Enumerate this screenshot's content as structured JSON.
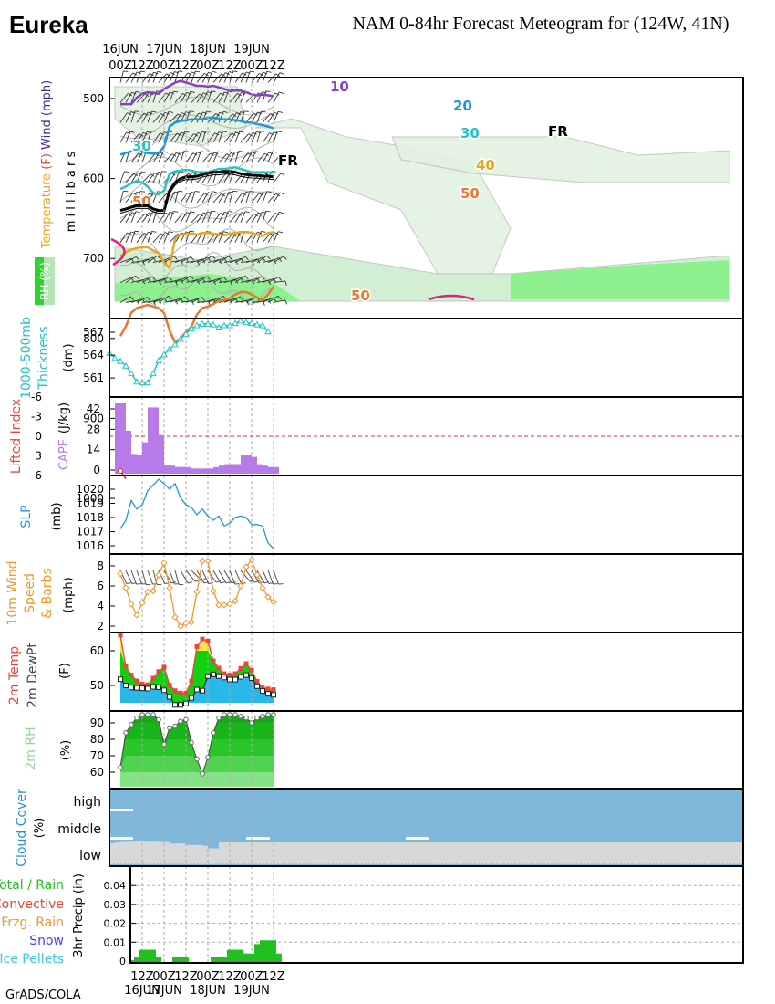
{
  "header": {
    "station": "Eureka",
    "title": "NAM 0-84hr Forecast Meteogram for (124W, 41N)"
  },
  "footer": {
    "credit": "GrADS/COLA"
  },
  "time_axis": {
    "top_labels": [
      {
        "h": 0,
        "l1": "16JUN",
        "l2": "00Z"
      },
      {
        "h": 12,
        "l1": "",
        "l2": "12Z"
      },
      {
        "h": 24,
        "l1": "17JUN",
        "l2": "00Z"
      },
      {
        "h": 36,
        "l1": "",
        "l2": "12Z"
      },
      {
        "h": 48,
        "l1": "18JUN",
        "l2": "00Z"
      },
      {
        "h": 60,
        "l1": "",
        "l2": "12Z"
      },
      {
        "h": 72,
        "l1": "19JUN",
        "l2": "00Z"
      },
      {
        "h": 84,
        "l1": "",
        "l2": "12Z"
      }
    ],
    "bottom_labels": [
      {
        "h": 12,
        "l1": "12Z",
        "l2": "16JUN"
      },
      {
        "h": 24,
        "l1": "00Z",
        "l2": "17JUN"
      },
      {
        "h": 36,
        "l1": "12Z",
        "l2": ""
      },
      {
        "h": 48,
        "l1": "00Z",
        "l2": "18JUN"
      },
      {
        "h": 60,
        "l1": "12Z",
        "l2": ""
      },
      {
        "h": 72,
        "l1": "00Z",
        "l2": "19JUN"
      },
      {
        "h": 84,
        "l1": "12Z",
        "l2": ""
      }
    ]
  },
  "panel_labels": {
    "upper": {
      "temperature": "Temperature",
      "f": "(F)",
      "wind": "Wind (mph)",
      "millibars": "m i l l i b a r s",
      "rh": "RH (%)"
    },
    "thickness": {
      "line1": "1000-500mb",
      "line2": "Thickness",
      "unit": "(dm)"
    },
    "instability": {
      "li": "Lifted Index",
      "cape": "CAPE",
      "unit": "(J/kg)"
    },
    "slp": {
      "name": "SLP",
      "unit": "(mb)"
    },
    "wind10": {
      "l1": "10m Wind",
      "l2": "Speed",
      "l3": "& Barbs",
      "unit": "(mph)"
    },
    "temp2m": {
      "l1": "2m Temp",
      "l2": "2m DewPt",
      "unit": "(F)"
    },
    "rh2m": {
      "name": "2m RH",
      "unit": "(%)"
    },
    "cloud": {
      "name": "Cloud Cover",
      "unit": "(%)",
      "high": "high",
      "middle": "middle",
      "low": "low"
    },
    "precip": {
      "l1": "Total / Rain",
      "l2": "Convective",
      "l3": "Frzg. Rain",
      "l4": "Snow",
      "l5": "Ice Pellets",
      "axis": "3hr Precip (in)"
    }
  },
  "colors": {
    "temp_red": "#e8453c",
    "wind_purple": "#8c3fc1",
    "thickness_cyan": "#23c4c4",
    "cape": "#b77ae8",
    "slp": "#1e96dc",
    "wind10": "#f0962d",
    "temp_fill": "#10d010",
    "dew_fill": "#29b8e8",
    "rh_green": "#1cc41c",
    "cloud_blue": "#80b8dc",
    "cloud_gray": "#d8d8d8",
    "precip": "#20c020",
    "rh_label": "#9ad29a"
  },
  "chart_data": [
    {
      "type": "contour",
      "name": "upper_air",
      "y_axis": {
        "label": "millibars",
        "ticks": [
          500,
          600,
          700,
          800,
          900,
          1000
        ]
      },
      "temperature_contours_F": [
        {
          "value": 10,
          "color": "#8c3fc1",
          "levels_mb": [
            507,
            507,
            507,
            499,
            494,
            492,
            493,
            494,
            488,
            484,
            480,
            478,
            480,
            482,
            484,
            484,
            485,
            484,
            486,
            488,
            490,
            490,
            490,
            492,
            495,
            496,
            495,
            496,
            497
          ]
        },
        {
          "value": 20,
          "color": "#1e96dc",
          "levels_mb": [
            570,
            568,
            566,
            566,
            566,
            568,
            569,
            568,
            560,
            535,
            530,
            528,
            527,
            526,
            526,
            526,
            524,
            524,
            525,
            526,
            526,
            527,
            528,
            530,
            530,
            532,
            533,
            535,
            537
          ]
        },
        {
          "value": 30,
          "color": "#23c4c4",
          "levels_mb": [
            613,
            610,
            606,
            603,
            605,
            610,
            618,
            620,
            615,
            594,
            591,
            590,
            589,
            590,
            592,
            592,
            592,
            590,
            588,
            588,
            587,
            586,
            588,
            590,
            592,
            592,
            592,
            592,
            593
          ]
        },
        {
          "value": 40,
          "color": "#e8a623",
          "levels_mb": [
            697,
            692,
            689,
            687,
            686,
            686,
            690,
            693,
            705,
            712,
            675,
            670,
            670,
            669,
            670,
            668,
            668,
            669,
            670,
            671,
            669,
            668,
            667,
            667,
            668,
            670,
            672,
            668,
            667
          ]
        },
        {
          "value": 50,
          "color": "#e8782d",
          "levels_mb": [
            797,
            785,
            768,
            762,
            760,
            758,
            760,
            762,
            768,
            790,
            805,
            800,
            792,
            785,
            770,
            762,
            760,
            757,
            753,
            752,
            750,
            745,
            742,
            742,
            745,
            749,
            752,
            745,
            735
          ]
        }
      ],
      "freezing_level_mb": [
        640,
        638,
        636,
        634,
        634,
        634,
        638,
        640,
        640,
        615,
        605,
        600,
        598,
        598,
        597,
        595,
        593,
        592,
        592,
        591,
        591,
        592,
        594,
        595,
        596,
        596,
        597,
        597,
        598
      ],
      "contour_labels": [
        "10",
        "20",
        "30",
        "40",
        "50",
        "FR"
      ]
    },
    {
      "type": "line",
      "name": "thickness",
      "ylabel": "1000-500mb Thickness (dm)",
      "y_ticks": [
        561,
        564,
        567
      ],
      "ylim": [
        558.5,
        568.8
      ],
      "hours": [
        0,
        3,
        6,
        9,
        12,
        15,
        18,
        21,
        24,
        27,
        30,
        33,
        36,
        39,
        42,
        45,
        48,
        51,
        54,
        57,
        60,
        63,
        66,
        69,
        72,
        75,
        78,
        81,
        84,
        87
      ],
      "values": [
        564.3,
        563.6,
        563.2,
        562.6,
        561.6,
        560.5,
        560.4,
        560.4,
        561.6,
        563.3,
        564.1,
        564.8,
        565.4,
        566.1,
        566.8,
        567.5,
        567.9,
        568.1,
        568.1,
        568.0,
        567.6,
        567.9,
        567.9,
        568.2,
        568.5,
        568.3,
        568.2,
        568.0,
        567.9,
        567.1
      ],
      "marker": "triangle"
    },
    {
      "type": "bar",
      "name": "instability",
      "cape_axis": {
        "label": "CAPE (J/kg)",
        "ticks": [
          0,
          14,
          28,
          42
        ]
      },
      "li_axis": {
        "label": "Lifted Index",
        "ticks": [
          -6,
          -3,
          0,
          3,
          6
        ]
      },
      "hours": [
        0,
        3,
        6,
        9,
        12,
        15,
        18,
        21,
        24,
        27,
        30,
        33,
        36,
        39,
        42,
        45,
        48,
        51,
        54,
        57,
        60,
        63,
        66,
        69,
        72,
        75,
        78,
        81,
        84
      ],
      "cape": [
        46,
        27,
        11,
        8,
        10,
        19,
        43,
        24,
        3,
        3,
        2,
        2,
        2,
        1,
        1,
        1,
        1,
        1,
        2,
        3,
        4,
        4,
        4,
        10,
        9,
        4,
        3,
        2,
        2
      ],
      "lifted_index": [
        5.3,
        6.5
      ]
    },
    {
      "type": "line",
      "name": "slp",
      "ylabel": "SLP (mb)",
      "y_ticks": [
        1016,
        1017,
        1018,
        1019,
        1020
      ],
      "hours": [
        0,
        3,
        6,
        9,
        12,
        15,
        18,
        21,
        24,
        27,
        30,
        33,
        36,
        39,
        42,
        45,
        48,
        51,
        54,
        57,
        60,
        63,
        66,
        69,
        72,
        75,
        78,
        81,
        84
      ],
      "values": [
        1017.2,
        1017.8,
        1019.2,
        1018.6,
        1018.9,
        1019.9,
        1020.3,
        1020.7,
        1020.4,
        1020.0,
        1020.4,
        1019.4,
        1018.9,
        1018.7,
        1018.2,
        1018.6,
        1018.1,
        1017.8,
        1018.1,
        1017.4,
        1017.6,
        1018.0,
        1018.1,
        1018.0,
        1017.5,
        1017.5,
        1017.4,
        1016.2,
        1015.8
      ]
    },
    {
      "type": "line",
      "name": "wind10m",
      "ylabel": "10m Wind Speed & Barbs (mph)",
      "y_ticks": [
        2,
        4,
        6,
        8
      ],
      "hours": [
        0,
        3,
        6,
        9,
        12,
        15,
        18,
        21,
        24,
        27,
        30,
        33,
        36,
        39,
        42,
        45,
        48,
        51,
        54,
        57,
        60,
        63,
        66,
        69,
        72,
        75,
        78,
        81,
        84
      ],
      "values": [
        7.2,
        5.8,
        4.2,
        3.1,
        4.3,
        5.4,
        5.5,
        7.1,
        8.3,
        5.8,
        2.9,
        2.0,
        2.3,
        2.4,
        5.4,
        8.5,
        8.5,
        5.5,
        4.1,
        4.1,
        4.2,
        4.5,
        6.0,
        7.9,
        8.6,
        7.1,
        5.8,
        4.9,
        4.4
      ],
      "barb_dirs_deg": [
        335,
        335,
        340,
        340,
        345,
        340,
        345,
        335,
        330,
        340,
        345,
        330,
        320,
        315,
        330,
        335,
        325,
        330,
        330,
        330,
        340,
        335,
        320,
        325,
        330,
        330,
        335,
        340,
        340
      ]
    },
    {
      "type": "area",
      "name": "temp2m",
      "ylabel": "2m Temp / 2m DewPt (F)",
      "y_ticks": [
        50,
        60
      ],
      "hours": [
        0,
        3,
        6,
        9,
        12,
        15,
        18,
        21,
        24,
        27,
        30,
        33,
        36,
        39,
        42,
        45,
        48,
        51,
        54,
        57,
        60,
        63,
        66,
        69,
        72,
        75,
        78,
        81,
        84
      ],
      "temp": [
        64.5,
        55.5,
        53.0,
        51.3,
        50.4,
        50.2,
        52.1,
        54.0,
        55.3,
        50.1,
        48.5,
        47.8,
        47.8,
        51.3,
        61.2,
        63.4,
        62.8,
        57.1,
        55.0,
        53.4,
        53.0,
        53.4,
        54.9,
        56.3,
        54.4,
        51.2,
        49.3,
        49.0,
        48.8
      ],
      "dewpoint": [
        51.8,
        50.0,
        49.4,
        49.3,
        49.2,
        49.1,
        49.6,
        49.5,
        48.6,
        46.7,
        44.4,
        44.4,
        44.8,
        46.4,
        48.8,
        48.5,
        52.7,
        53.2,
        52.7,
        52.3,
        51.7,
        51.7,
        52.5,
        53.0,
        52.1,
        49.8,
        48.4,
        47.6,
        47.3
      ],
      "bands": [
        {
          "from": 60,
          "color": "#f0e84a"
        },
        {
          "from": 0,
          "color": "#10d010"
        }
      ]
    },
    {
      "type": "area",
      "name": "rh2m",
      "ylabel": "2m RH (%)",
      "y_ticks": [
        60,
        70,
        80,
        90
      ],
      "hours": [
        0,
        3,
        6,
        9,
        12,
        15,
        18,
        21,
        24,
        27,
        30,
        33,
        36,
        39,
        42,
        45,
        48,
        51,
        54,
        57,
        60,
        63,
        66,
        69,
        72,
        75,
        78,
        81,
        84
      ],
      "values": [
        63,
        84,
        89,
        93,
        95,
        95,
        95,
        92,
        77,
        87,
        88,
        91,
        92,
        78,
        68,
        59,
        69,
        84,
        93,
        95,
        95,
        95,
        94,
        93,
        90,
        93,
        94,
        95,
        95
      ]
    },
    {
      "type": "area",
      "name": "cloud_cover",
      "ylabel": "Cloud Cover (%)",
      "hours": [
        0,
        3,
        6,
        9,
        12,
        15,
        18,
        21,
        24,
        27,
        30,
        33,
        36,
        39,
        42,
        45,
        48,
        51,
        54,
        57,
        60,
        63,
        66,
        69,
        72,
        75,
        78,
        81,
        84
      ],
      "low": [
        78,
        85,
        87,
        88,
        87,
        88,
        86,
        86,
        62,
        70,
        77,
        71,
        71,
        71,
        68,
        43,
        54,
        56,
        57,
        55,
        85,
        85,
        85,
        85,
        85,
        85,
        85,
        85,
        85
      ],
      "middle": [
        100,
        100,
        100,
        100,
        100,
        100,
        100,
        100,
        100,
        100,
        100,
        100,
        100,
        100,
        100,
        100,
        100,
        100,
        100,
        100,
        100,
        100,
        100,
        100,
        100,
        100,
        100,
        100,
        100
      ],
      "high": [
        100,
        100,
        100,
        100,
        100,
        100,
        100,
        100,
        100,
        100,
        100,
        100,
        100,
        100,
        100,
        100,
        100,
        100,
        100,
        100,
        100,
        100,
        100,
        100,
        100,
        100,
        100,
        100,
        100
      ]
    },
    {
      "type": "bar",
      "name": "precip3hr",
      "ylabel": "3hr Precip (in)",
      "y_ticks": [
        0,
        0.01,
        0.02,
        0.03,
        0.04
      ],
      "hours": [
        0,
        3,
        6,
        9,
        12,
        15,
        18,
        21,
        24,
        27,
        30,
        33,
        36,
        39,
        42,
        45,
        48,
        51,
        54,
        57,
        60,
        63,
        66,
        69,
        72,
        75,
        78,
        81,
        84
      ],
      "values": [
        0,
        0,
        0,
        0,
        0.002,
        0.006,
        0.002,
        0,
        0,
        0,
        0,
        0.002,
        0,
        0,
        0,
        0,
        0,
        0,
        0.002,
        0.002,
        0.002,
        0.006,
        0.004,
        0.004,
        0.002,
        0.002,
        0.009,
        0.011,
        0.004
      ]
    }
  ]
}
